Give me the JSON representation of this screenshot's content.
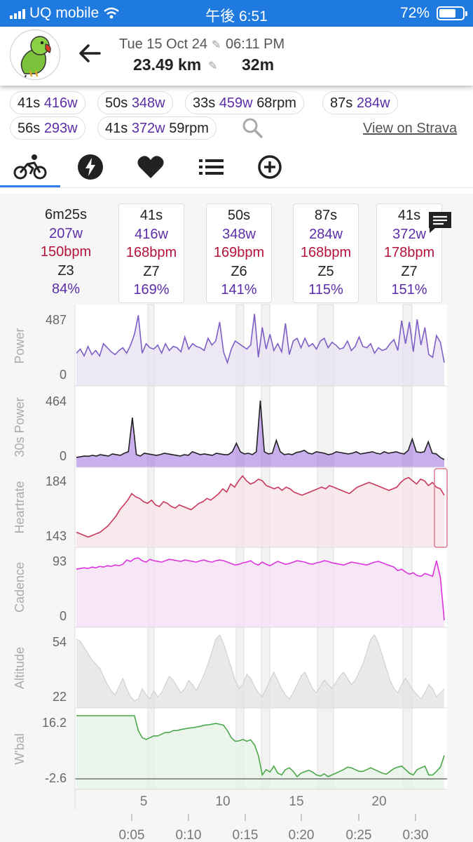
{
  "status": {
    "carrier": "UQ mobile",
    "clock": "午後 6:51",
    "battery": "72%",
    "battery_level": 0.72
  },
  "header": {
    "date": "Tue 15 Oct 24",
    "time": "06:11 PM",
    "distance": "23.49 km",
    "duration": "32m"
  },
  "intervals": [
    {
      "dur": "41s",
      "watts": "416w",
      "rpm": ""
    },
    {
      "dur": "50s",
      "watts": "348w",
      "rpm": ""
    },
    {
      "dur": "33s",
      "watts": "459w",
      "rpm": "68rpm"
    },
    {
      "dur": "87s",
      "watts": "284w",
      "rpm": ""
    },
    {
      "dur": "56s",
      "watts": "293w",
      "rpm": ""
    },
    {
      "dur": "41s",
      "watts": "372w",
      "rpm": "59rpm"
    }
  ],
  "view_on_strava": "View on Strava",
  "tabs": [
    "ride",
    "power",
    "heart",
    "list",
    "add"
  ],
  "cards": [
    {
      "dur": "6m25s",
      "watts": "207w",
      "bpm": "150bpm",
      "zone": "Z3",
      "pct": "84%"
    },
    {
      "dur": "41s",
      "watts": "416w",
      "bpm": "168bpm",
      "zone": "Z7",
      "pct": "169%"
    },
    {
      "dur": "50s",
      "watts": "348w",
      "bpm": "169bpm",
      "zone": "Z6",
      "pct": "141%"
    },
    {
      "dur": "87s",
      "watts": "284w",
      "bpm": "168bpm",
      "zone": "Z5",
      "pct": "115%"
    },
    {
      "dur": "41s",
      "watts": "372w",
      "bpm": "178bpm",
      "zone": "Z7",
      "pct": "151%"
    }
  ],
  "chart_data": {
    "type": "line",
    "x_ticks_distance_km": [
      "5",
      "10",
      "15",
      "20"
    ],
    "x_ticks_time": [
      "0:05",
      "0:10",
      "0:15",
      "0:20",
      "0:25",
      "0:30"
    ],
    "series": [
      {
        "name": "Power",
        "ymax": "487",
        "ymin": "0",
        "color": "#7e5fc6",
        "fill": "#e7e2f1",
        "range": [
          0,
          487
        ],
        "values": [
          190,
          220,
          170,
          240,
          180,
          210,
          170,
          260,
          230,
          200,
          180,
          210,
          230,
          190,
          250,
          330,
          470,
          190,
          260,
          230,
          220,
          250,
          190,
          260,
          210,
          240,
          230,
          200,
          310,
          220,
          260,
          240,
          230,
          210,
          300,
          250,
          280,
          420,
          200,
          120,
          220,
          280,
          260,
          240,
          220,
          250,
          480,
          160,
          380,
          220,
          330,
          210,
          260,
          200,
          410,
          180,
          280,
          300,
          230,
          300,
          240,
          260,
          220,
          280,
          300,
          230,
          270,
          250,
          220,
          230,
          280,
          210,
          240,
          310,
          240,
          230,
          260,
          190,
          230,
          210,
          220,
          260,
          290,
          210,
          430,
          260,
          420,
          200,
          440,
          250,
          380,
          180,
          160,
          320,
          270,
          120
        ]
      },
      {
        "name": "30s Power",
        "ymax": "464",
        "ymin": "0",
        "color": "#222222",
        "fill": "#9e6de0",
        "range": [
          0,
          464
        ],
        "values": [
          20,
          25,
          30,
          28,
          35,
          30,
          40,
          35,
          30,
          45,
          40,
          35,
          50,
          60,
          300,
          40,
          30,
          50,
          45,
          40,
          35,
          40,
          50,
          45,
          40,
          35,
          30,
          40,
          35,
          60,
          50,
          40,
          45,
          40,
          35,
          50,
          45,
          40,
          40,
          60,
          120,
          60,
          45,
          50,
          40,
          60,
          420,
          60,
          45,
          50,
          140,
          60,
          40,
          45,
          40,
          55,
          60,
          70,
          50,
          45,
          60,
          55,
          50,
          40,
          45,
          60,
          55,
          50,
          45,
          50,
          60,
          45,
          50,
          55,
          60,
          50,
          45,
          60,
          50,
          55,
          60,
          50,
          45,
          70,
          150,
          60,
          55,
          60,
          130,
          50,
          45,
          20,
          5
        ]
      },
      {
        "name": "Heartrate",
        "ymax": "184",
        "ymin": "143",
        "color": "#c8385f",
        "fill": "#f7e4e8",
        "range": [
          143,
          184
        ],
        "values": [
          148,
          147,
          146,
          145,
          146,
          147,
          148,
          150,
          152,
          155,
          158,
          162,
          165,
          168,
          172,
          170,
          169,
          167,
          166,
          168,
          165,
          164,
          167,
          166,
          164,
          163,
          165,
          164,
          163,
          162,
          164,
          166,
          167,
          169,
          168,
          170,
          172,
          175,
          173,
          178,
          176,
          180,
          183,
          180,
          178,
          179,
          181,
          180,
          177,
          176,
          175,
          176,
          174,
          176,
          175,
          173,
          172,
          171,
          172,
          173,
          174,
          175,
          176,
          175,
          177,
          176,
          175,
          174,
          173,
          172,
          174,
          176,
          177,
          178,
          179,
          178,
          177,
          176,
          175,
          174,
          175,
          176,
          179,
          181,
          182,
          180,
          178,
          181,
          180,
          177,
          179,
          176,
          175,
          171
        ]
      },
      {
        "name": "Cadence",
        "ymax": "93",
        "ymin": "0",
        "color": "#dd33dd",
        "fill": "#f5e0f5",
        "range": [
          0,
          93
        ],
        "values": [
          72,
          73,
          74,
          73,
          75,
          74,
          76,
          75,
          77,
          76,
          78,
          77,
          79,
          85,
          83,
          87,
          88,
          84,
          82,
          86,
          84,
          83,
          82,
          84,
          86,
          85,
          84,
          83,
          85,
          84,
          83,
          82,
          84,
          85,
          83,
          82,
          84,
          85,
          84,
          82,
          80,
          78,
          79,
          81,
          82,
          84,
          80,
          78,
          82,
          79,
          77,
          80,
          83,
          81,
          79,
          80,
          82,
          84,
          83,
          82,
          80,
          79,
          81,
          82,
          84,
          83,
          81,
          80,
          79,
          78,
          80,
          82,
          81,
          80,
          79,
          78,
          80,
          82,
          83,
          81,
          79,
          77,
          75,
          70,
          72,
          68,
          65,
          67,
          63,
          62,
          66,
          64,
          62,
          84,
          60,
          0
        ]
      },
      {
        "name": "Altitude",
        "ymax": "54",
        "ymin": "22",
        "color": "#cccccc",
        "fill": "#e4e4e4",
        "range": [
          22,
          54
        ],
        "values": [
          52,
          51,
          48,
          45,
          42,
          40,
          38,
          34,
          30,
          27,
          25,
          29,
          33,
          28,
          24,
          22,
          23,
          28,
          25,
          23,
          27,
          24,
          26,
          30,
          34,
          32,
          29,
          26,
          28,
          32,
          30,
          27,
          31,
          35,
          40,
          46,
          52,
          54,
          50,
          44,
          38,
          32,
          28,
          30,
          35,
          33,
          29,
          26,
          24,
          28,
          32,
          36,
          32,
          28,
          25,
          23,
          26,
          30,
          34,
          36,
          32,
          28,
          26,
          29,
          32,
          30,
          28,
          31,
          34,
          36,
          33,
          30,
          32,
          36,
          40,
          46,
          52,
          54,
          50,
          44,
          38,
          32,
          28,
          26,
          30,
          33,
          30,
          27,
          25,
          23,
          26,
          30,
          28,
          24,
          26,
          28
        ]
      },
      {
        "name": "W'bal",
        "ymax": "16.2",
        "ymin": "-2.6",
        "color": "#4aa84a",
        "fill": "#e6f2e6",
        "range": [
          -2.6,
          16.2
        ],
        "values": [
          16.2,
          16.2,
          16.2,
          16.2,
          16.2,
          16.2,
          16.2,
          16.2,
          16.2,
          16.2,
          16.2,
          16.2,
          16.2,
          16.2,
          16.2,
          16.2,
          12,
          10,
          9.5,
          10,
          10.5,
          10.5,
          11,
          11.5,
          11.5,
          12,
          12,
          12.3,
          12.5,
          12.7,
          12.8,
          13,
          13.2,
          13.5,
          13.6,
          13.8,
          14,
          13.8,
          13.5,
          12,
          10,
          9,
          9.1,
          9.5,
          9,
          9.4,
          8,
          5,
          -0.5,
          1,
          0.3,
          2,
          0,
          -0.5,
          1,
          1.5,
          0.5,
          -1,
          0,
          0.4,
          0.8,
          0.3,
          -0.5,
          -0.8,
          -0.2,
          -1,
          -0.5,
          0,
          0.5,
          1,
          1.7,
          1.5,
          1,
          0.5,
          0.5,
          1,
          1.5,
          1,
          0.5,
          0,
          -0.3,
          0.5,
          1.3,
          1.7,
          2,
          1,
          0,
          -0.5,
          1,
          1.5,
          2,
          -0.5,
          -0.5,
          0.5,
          1.7,
          5
        ]
      }
    ]
  }
}
